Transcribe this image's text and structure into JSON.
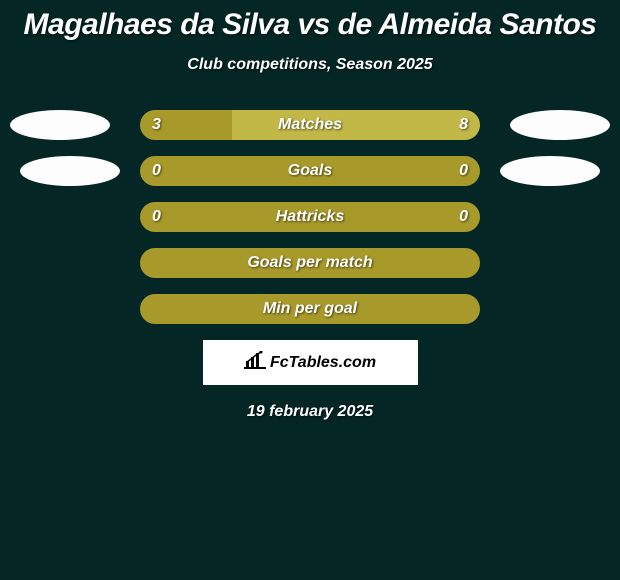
{
  "title": "Magalhaes da Silva vs de Almeida Santos",
  "subtitle": "Club competitions, Season 2025",
  "date": "19 february 2025",
  "logo": "FcTables.com",
  "colors": {
    "background": "#042625",
    "bar_olive": "#a89a2a",
    "bar_light": "#c2b848",
    "oval": "#fdfdfd",
    "text": "#ffffff"
  },
  "rows": [
    {
      "label": "Matches",
      "left_val": "3",
      "right_val": "8",
      "left_pct": 27,
      "right_pct": 73,
      "left_color": "#a89a2a",
      "right_color": "#c2b848",
      "show_ovals": true,
      "oval_left_offset": 10,
      "oval_right_offset": 10
    },
    {
      "label": "Goals",
      "left_val": "0",
      "right_val": "0",
      "left_pct": 50,
      "right_pct": 50,
      "left_color": "#a89a2a",
      "right_color": "#a89a2a",
      "show_ovals": true,
      "oval_left_offset": 20,
      "oval_right_offset": 20
    },
    {
      "label": "Hattricks",
      "left_val": "0",
      "right_val": "0",
      "left_pct": 50,
      "right_pct": 50,
      "left_color": "#a89a2a",
      "right_color": "#a89a2a",
      "show_ovals": false
    },
    {
      "label": "Goals per match",
      "left_val": "",
      "right_val": "",
      "left_pct": 50,
      "right_pct": 50,
      "left_color": "#a89a2a",
      "right_color": "#a89a2a",
      "show_ovals": false
    },
    {
      "label": "Min per goal",
      "left_val": "",
      "right_val": "",
      "left_pct": 50,
      "right_pct": 50,
      "left_color": "#a89a2a",
      "right_color": "#a89a2a",
      "show_ovals": false
    }
  ]
}
